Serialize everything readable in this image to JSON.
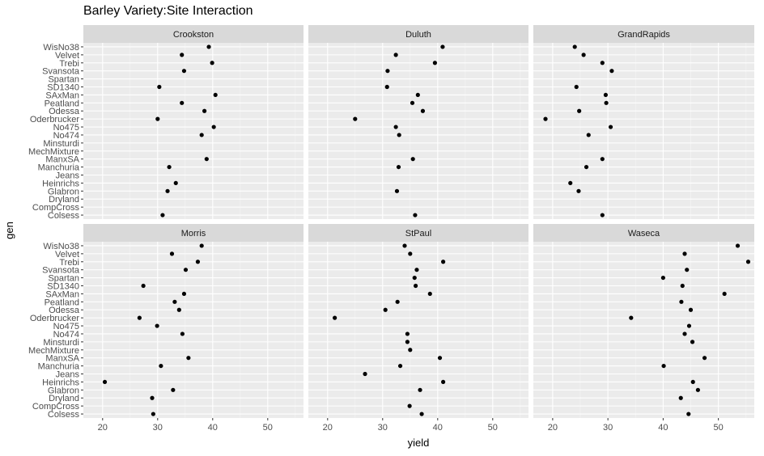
{
  "chart_data": {
    "type": "scatter",
    "title": "Barley Variety:Site Interaction",
    "xlabel": "yield",
    "ylabel": "gen",
    "xlim": [
      16.5,
      56.5
    ],
    "x_ticks": [
      20,
      30,
      40,
      50
    ],
    "grid": true,
    "panel_background": "#ebebeb",
    "strip_background": "#d9d9d9",
    "point_color": "#000000",
    "categories": [
      "Colsess",
      "CompCross",
      "Dryland",
      "Glabron",
      "Heinrichs",
      "Jeans",
      "Manchuria",
      "ManxSA",
      "MechMixture",
      "Minsturdi",
      "No474",
      "No475",
      "Oderbrucker",
      "Odessa",
      "Peatland",
      "SAxMan",
      "SD1340",
      "Spartan",
      "Svansota",
      "Trebi",
      "Velvet",
      "WisNo38"
    ],
    "panels": [
      {
        "name": "Crookston",
        "points": [
          {
            "gen": "WisNo38",
            "yield": 39.3
          },
          {
            "gen": "Velvet",
            "yield": 34.4
          },
          {
            "gen": "Trebi",
            "yield": 39.9
          },
          {
            "gen": "Svansota",
            "yield": 34.8
          },
          {
            "gen": "SD1340",
            "yield": 30.3
          },
          {
            "gen": "SAxMan",
            "yield": 40.5
          },
          {
            "gen": "Peatland",
            "yield": 34.4
          },
          {
            "gen": "Odessa",
            "yield": 38.5
          },
          {
            "gen": "Oderbrucker",
            "yield": 30.0
          },
          {
            "gen": "No475",
            "yield": 40.2
          },
          {
            "gen": "No474",
            "yield": 38.0
          },
          {
            "gen": "ManxSA",
            "yield": 38.9
          },
          {
            "gen": "Manchuria",
            "yield": 32.1
          },
          {
            "gen": "Heinrichs",
            "yield": 33.3
          },
          {
            "gen": "Glabron",
            "yield": 31.8
          },
          {
            "gen": "Colsess",
            "yield": 30.9
          }
        ]
      },
      {
        "name": "Duluth",
        "points": [
          {
            "gen": "WisNo38",
            "yield": 40.9
          },
          {
            "gen": "Velvet",
            "yield": 32.4
          },
          {
            "gen": "Trebi",
            "yield": 39.5
          },
          {
            "gen": "Svansota",
            "yield": 30.9
          },
          {
            "gen": "SD1340",
            "yield": 30.8
          },
          {
            "gen": "SAxMan",
            "yield": 36.4
          },
          {
            "gen": "Peatland",
            "yield": 35.4
          },
          {
            "gen": "Odessa",
            "yield": 37.3
          },
          {
            "gen": "Oderbrucker",
            "yield": 25.0
          },
          {
            "gen": "No475",
            "yield": 32.4
          },
          {
            "gen": "No474",
            "yield": 33.0
          },
          {
            "gen": "ManxSA",
            "yield": 35.5
          },
          {
            "gen": "Manchuria",
            "yield": 32.9
          },
          {
            "gen": "Glabron",
            "yield": 32.6
          },
          {
            "gen": "Colsess",
            "yield": 35.9
          }
        ]
      },
      {
        "name": "GrandRapids",
        "points": [
          {
            "gen": "WisNo38",
            "yield": 24.0
          },
          {
            "gen": "Velvet",
            "yield": 25.6
          },
          {
            "gen": "Trebi",
            "yield": 29.0
          },
          {
            "gen": "Svansota",
            "yield": 30.7
          },
          {
            "gen": "SD1340",
            "yield": 24.3
          },
          {
            "gen": "SAxMan",
            "yield": 29.6
          },
          {
            "gen": "Peatland",
            "yield": 29.7
          },
          {
            "gen": "Odessa",
            "yield": 24.8
          },
          {
            "gen": "Oderbrucker",
            "yield": 18.7
          },
          {
            "gen": "No475",
            "yield": 30.5
          },
          {
            "gen": "No474",
            "yield": 26.5
          },
          {
            "gen": "ManxSA",
            "yield": 29.0
          },
          {
            "gen": "Manchuria",
            "yield": 26.1
          },
          {
            "gen": "Heinrichs",
            "yield": 23.2
          },
          {
            "gen": "Glabron",
            "yield": 24.7
          },
          {
            "gen": "Colsess",
            "yield": 29.0
          }
        ]
      },
      {
        "name": "Morris",
        "points": [
          {
            "gen": "WisNo38",
            "yield": 38.0
          },
          {
            "gen": "Velvet",
            "yield": 32.6
          },
          {
            "gen": "Trebi",
            "yield": 37.3
          },
          {
            "gen": "Svansota",
            "yield": 35.1
          },
          {
            "gen": "SD1340",
            "yield": 27.4
          },
          {
            "gen": "SAxMan",
            "yield": 34.8
          },
          {
            "gen": "Peatland",
            "yield": 33.1
          },
          {
            "gen": "Odessa",
            "yield": 33.9
          },
          {
            "gen": "Oderbrucker",
            "yield": 26.7
          },
          {
            "gen": "No475",
            "yield": 29.9
          },
          {
            "gen": "No474",
            "yield": 34.5
          },
          {
            "gen": "ManxSA",
            "yield": 35.6
          },
          {
            "gen": "Manchuria",
            "yield": 30.6
          },
          {
            "gen": "Heinrichs",
            "yield": 20.4
          },
          {
            "gen": "Glabron",
            "yield": 32.8
          },
          {
            "gen": "Dryland",
            "yield": 29.0
          },
          {
            "gen": "Colsess",
            "yield": 29.2
          }
        ]
      },
      {
        "name": "StPaul",
        "points": [
          {
            "gen": "WisNo38",
            "yield": 34.0
          },
          {
            "gen": "Velvet",
            "yield": 35.0
          },
          {
            "gen": "Trebi",
            "yield": 41.0
          },
          {
            "gen": "Svansota",
            "yield": 36.2
          },
          {
            "gen": "Spartan",
            "yield": 35.8
          },
          {
            "gen": "SD1340",
            "yield": 36.0
          },
          {
            "gen": "SAxMan",
            "yield": 38.6
          },
          {
            "gen": "Peatland",
            "yield": 32.7
          },
          {
            "gen": "Odessa",
            "yield": 30.5
          },
          {
            "gen": "Oderbrucker",
            "yield": 21.3
          },
          {
            "gen": "No474",
            "yield": 34.5
          },
          {
            "gen": "Minsturdi",
            "yield": 34.5
          },
          {
            "gen": "MechMixture",
            "yield": 35.0
          },
          {
            "gen": "ManxSA",
            "yield": 40.4
          },
          {
            "gen": "Manchuria",
            "yield": 33.2
          },
          {
            "gen": "Jeans",
            "yield": 26.8
          },
          {
            "gen": "Heinrichs",
            "yield": 41.0
          },
          {
            "gen": "Glabron",
            "yield": 36.8
          },
          {
            "gen": "CompCross",
            "yield": 34.9
          },
          {
            "gen": "Colsess",
            "yield": 37.1
          }
        ]
      },
      {
        "name": "Waseca",
        "points": [
          {
            "gen": "WisNo38",
            "yield": 53.5
          },
          {
            "gen": "Velvet",
            "yield": 43.9
          },
          {
            "gen": "Trebi",
            "yield": 55.4
          },
          {
            "gen": "Svansota",
            "yield": 44.3
          },
          {
            "gen": "Spartan",
            "yield": 40.0
          },
          {
            "gen": "SD1340",
            "yield": 43.5
          },
          {
            "gen": "SAxMan",
            "yield": 51.1
          },
          {
            "gen": "Peatland",
            "yield": 43.3
          },
          {
            "gen": "Odessa",
            "yield": 45.0
          },
          {
            "gen": "Oderbrucker",
            "yield": 34.2
          },
          {
            "gen": "No475",
            "yield": 44.7
          },
          {
            "gen": "No474",
            "yield": 43.9
          },
          {
            "gen": "Minsturdi",
            "yield": 45.3
          },
          {
            "gen": "ManxSA",
            "yield": 47.5
          },
          {
            "gen": "Manchuria",
            "yield": 40.1
          },
          {
            "gen": "Heinrichs",
            "yield": 45.4
          },
          {
            "gen": "Glabron",
            "yield": 46.3
          },
          {
            "gen": "Dryland",
            "yield": 43.2
          },
          {
            "gen": "Colsess",
            "yield": 44.6
          }
        ]
      }
    ]
  }
}
